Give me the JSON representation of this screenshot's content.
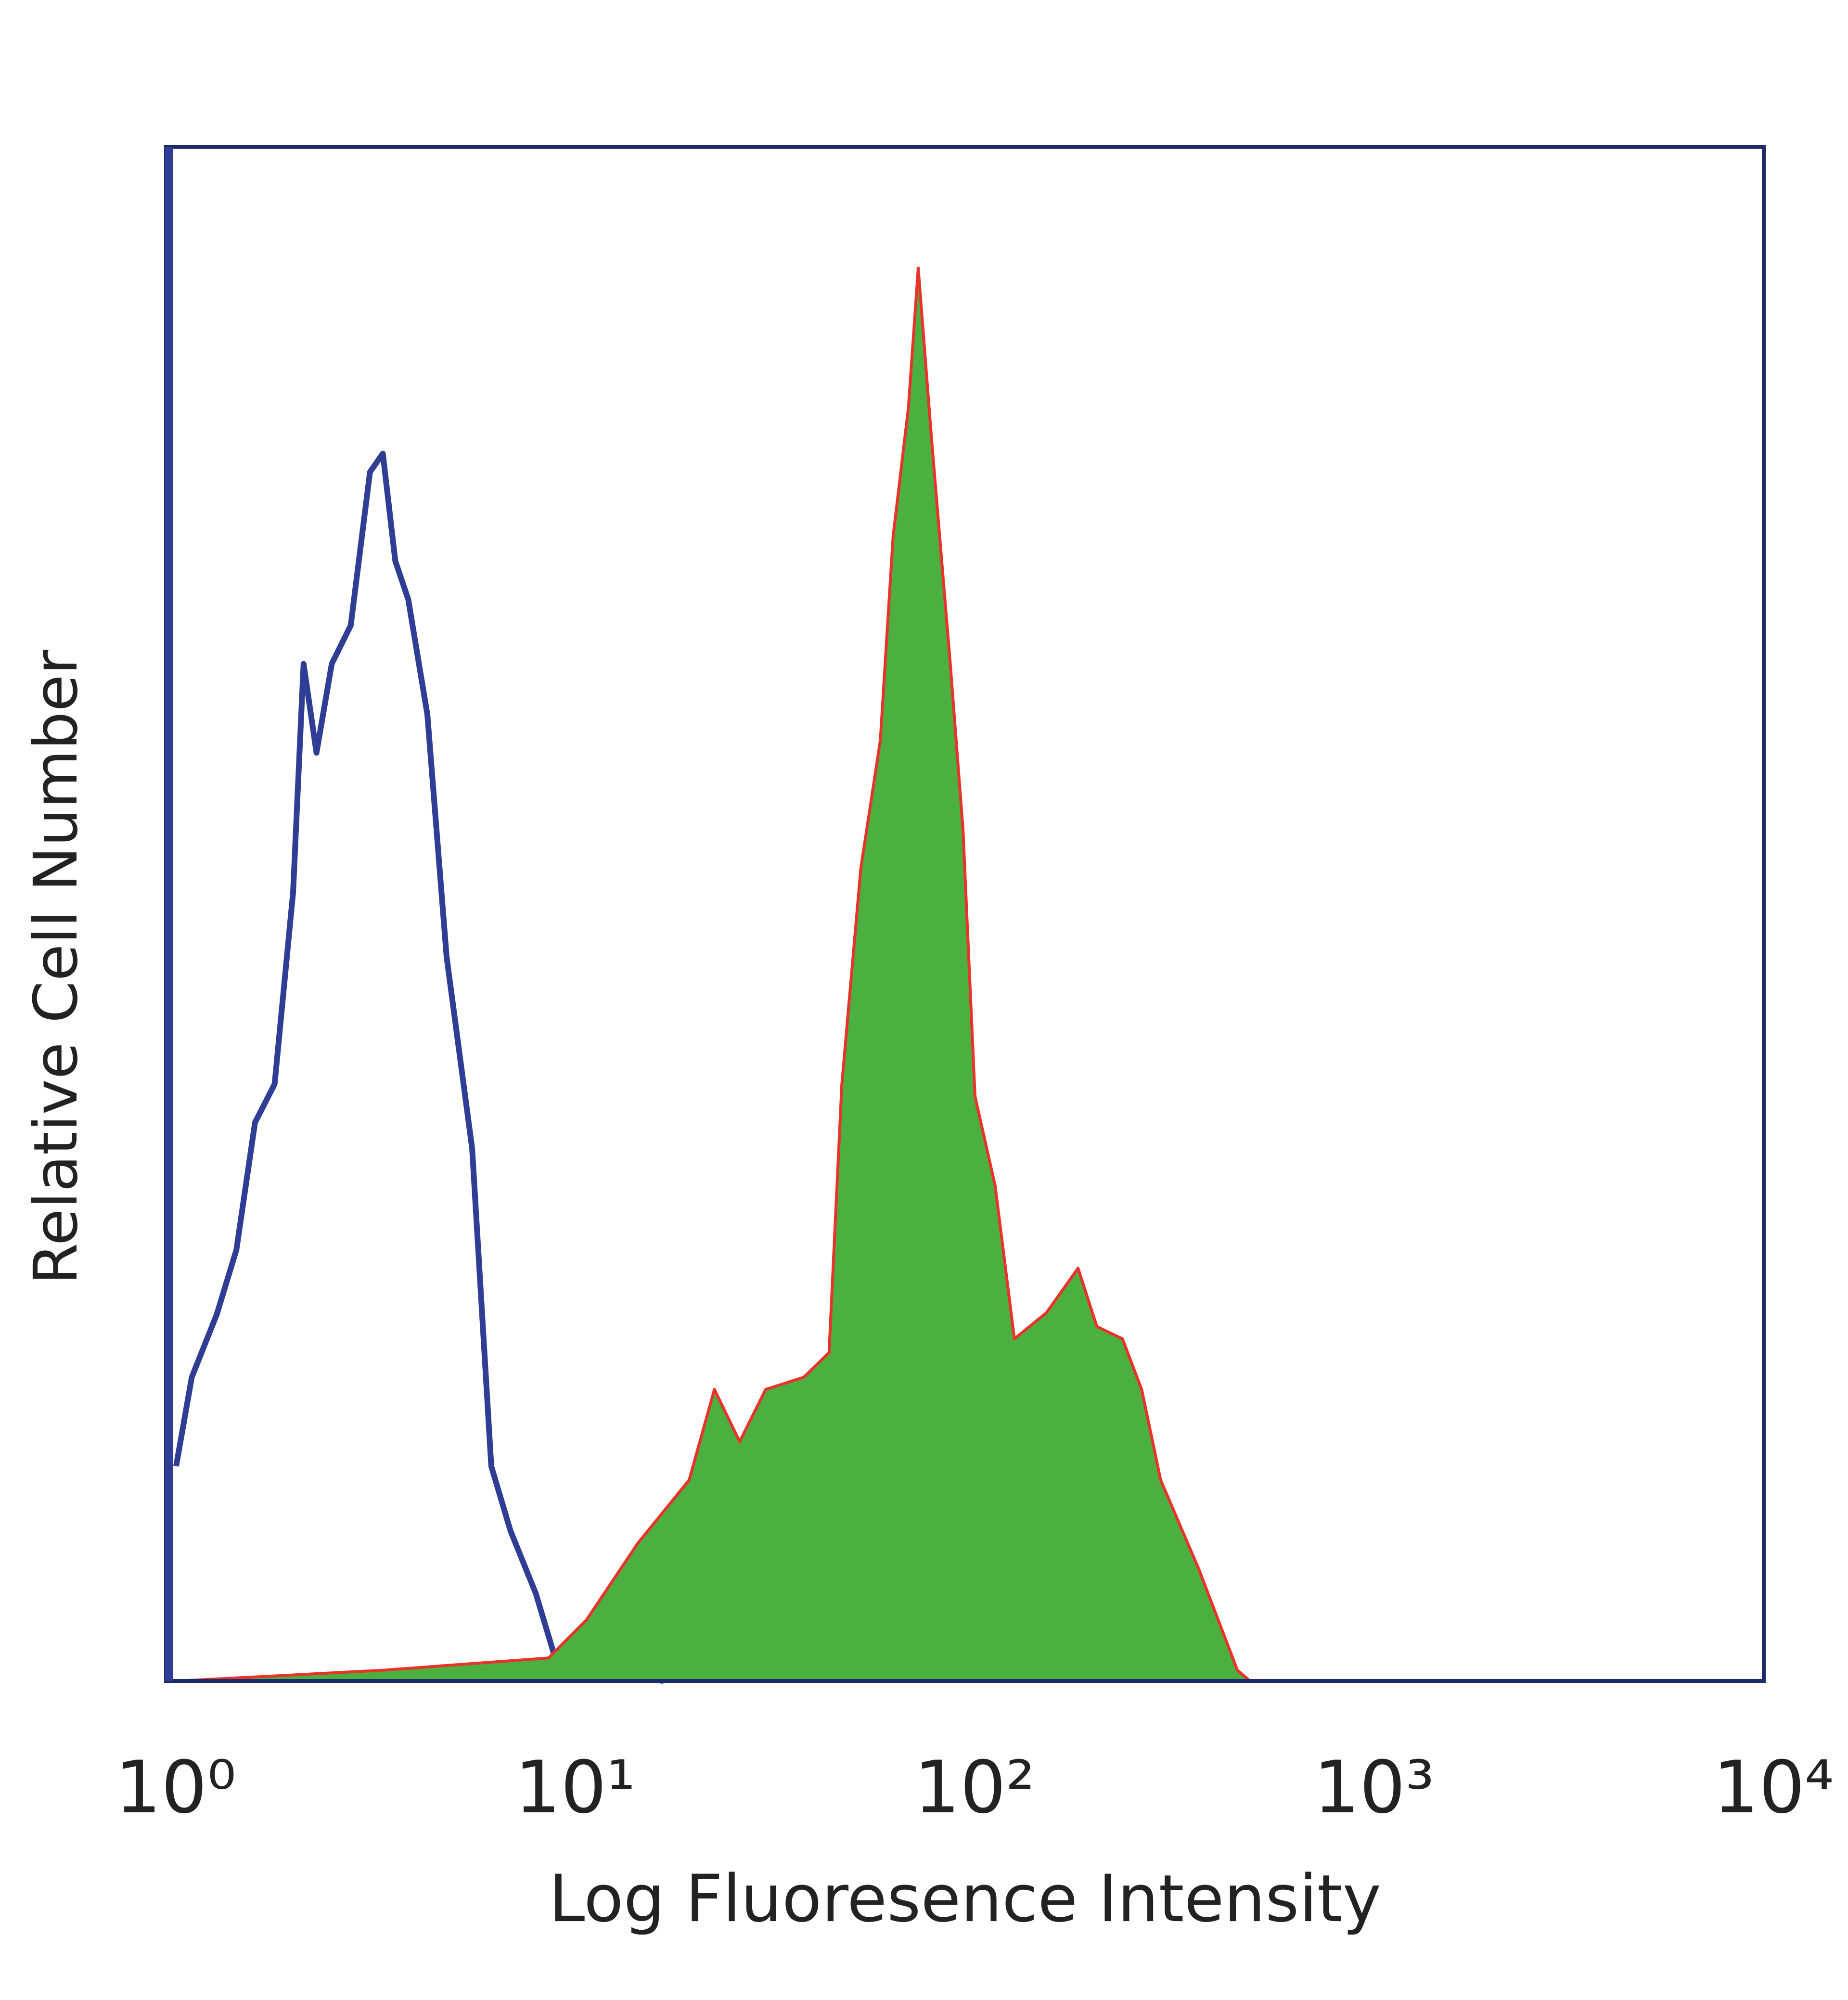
{
  "chart_data": {
    "type": "line",
    "x_label": "Log Fluoresence Intensity",
    "y_label": "Relative Cell Number",
    "xscale": "log",
    "xlim": [
      1,
      10000
    ],
    "xticks": [
      {
        "value": 1,
        "label": "10⁰"
      },
      {
        "value": 10,
        "label": "10¹"
      },
      {
        "value": 100,
        "label": "10²"
      },
      {
        "value": 1000,
        "label": "10³"
      },
      {
        "value": 10000,
        "label": "10⁴"
      }
    ],
    "ylim": [
      0,
      100
    ],
    "grid": false,
    "series": [
      {
        "color": "#2f3d94",
        "x": [
          1.06,
          1.16,
          1.34,
          1.5,
          1.67,
          1.87,
          2.08,
          2.21,
          2.38,
          2.6,
          2.9,
          3.24,
          3.49,
          3.75,
          4.04,
          4.51,
          5.04,
          5.84,
          6.52,
          7.28,
          8.43,
          9.42,
          11.3,
          17.6
        ],
        "values": [
          14.0,
          19.8,
          23.9,
          28.1,
          36.4,
          38.9,
          51.4,
          66.3,
          60.5,
          66.3,
          68.8,
          78.8,
          80.0,
          73.0,
          70.5,
          63.0,
          47.2,
          34.7,
          14.0,
          9.8,
          5.7,
          1.5,
          0.7,
          0
        ]
      },
      {
        "color": "#e8322a",
        "fill": "#4cb040",
        "x": [
          1.08,
          3.49,
          9.07,
          11.3,
          15.2,
          20.4,
          23.6,
          27.3,
          31.7,
          39.5,
          45.7,
          49.2,
          54.9,
          61.4,
          66.1,
          72.2,
          76.4,
          82.3,
          91.9,
          98.9,
          106,
          119,
          133,
          160,
          192,
          214,
          248,
          277,
          309,
          385,
          481,
          517
        ],
        "values": [
          0,
          0.7,
          1.5,
          4.0,
          9.0,
          13.1,
          19.0,
          15.6,
          19.0,
          19.8,
          21.4,
          38.9,
          53.0,
          61.3,
          74.6,
          83.0,
          92.1,
          81.3,
          66.3,
          55.5,
          38.1,
          32.3,
          22.3,
          24.0,
          26.9,
          23.1,
          22.3,
          19.0,
          13.1,
          7.3,
          0.7,
          0
        ]
      }
    ]
  }
}
